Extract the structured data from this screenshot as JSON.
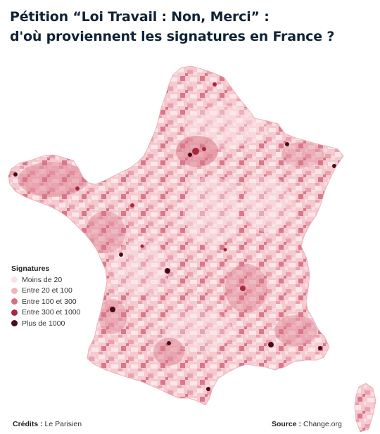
{
  "header": {
    "title_line1": "Pétition “Loi Travail : Non, Merci” :",
    "title_line2": "d'où proviennent les signatures en France ?"
  },
  "legend": {
    "title": "Signatures",
    "items": [
      {
        "label": "Moins de 20",
        "color": "#f9e3e5"
      },
      {
        "label": "Entre 20 et 100",
        "color": "#f0b5bc"
      },
      {
        "label": "Entre 100 et 300",
        "color": "#d6707f"
      },
      {
        "label": "Entre 300 et 1000",
        "color": "#a8293f"
      },
      {
        "label": "Plus de 1000",
        "color": "#4a0b18"
      }
    ]
  },
  "footer": {
    "credits_label": "Crédits :",
    "credits_value": "Le Parisien",
    "source_label": "Source :",
    "source_value": "Change.org"
  },
  "map": {
    "regions": [
      "France métropolitaine",
      "Corse"
    ],
    "palette": {
      "base": "#f4c9cf",
      "light": "#fbe6e8",
      "medium": "#d9788a",
      "dark": "#a8293f",
      "darkest": "#4a0b18"
    }
  }
}
